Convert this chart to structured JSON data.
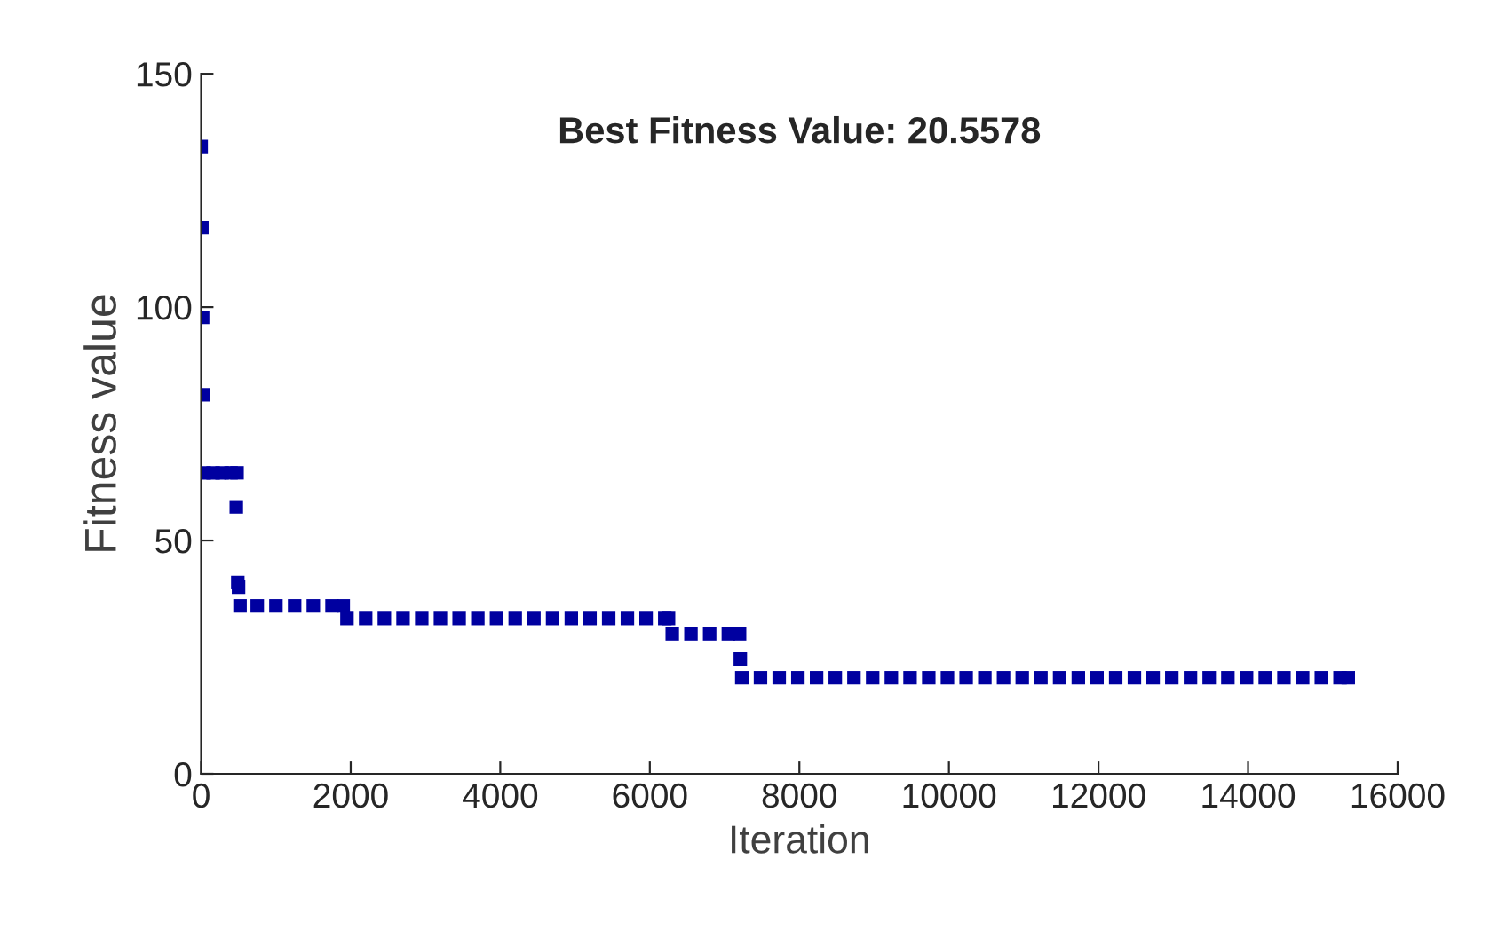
{
  "chart_data": {
    "type": "scatter",
    "title": "Best Fitness Value: 20.5578",
    "xlabel": "Iteration",
    "ylabel": "Fitness value",
    "xlim": [
      0,
      16000
    ],
    "xticks": [
      0,
      2000,
      4000,
      6000,
      8000,
      10000,
      12000,
      14000,
      16000
    ],
    "ylim": [
      0,
      150
    ],
    "yticks": [
      0,
      50,
      100,
      150
    ],
    "grid": false,
    "legend": false,
    "marker": "square",
    "series": [
      {
        "color": "#0000a0",
        "x": [
          0,
          10,
          20,
          30,
          40,
          160,
          280,
          400,
          480,
          470,
          490,
          500,
          520,
          750,
          1000,
          1250,
          1500,
          1750,
          1900,
          1950,
          2200,
          2450,
          2700,
          2950,
          3200,
          3450,
          3700,
          3950,
          4200,
          4450,
          4700,
          4950,
          5200,
          5450,
          5700,
          5950,
          6200,
          6250,
          6300,
          6550,
          6800,
          7050,
          7200,
          7210,
          7230,
          7480,
          7730,
          7980,
          8230,
          8480,
          8730,
          8980,
          9230,
          9480,
          9730,
          9980,
          10230,
          10480,
          10730,
          10980,
          11230,
          11480,
          11730,
          11980,
          12230,
          12480,
          12730,
          12980,
          13230,
          13480,
          13730,
          13980,
          14230,
          14480,
          14730,
          14980,
          15230,
          15340
        ],
        "values": [
          134.4,
          117,
          97.8,
          81.2,
          64.5,
          64.5,
          64.5,
          64.5,
          64.5,
          57.2,
          41,
          40,
          36,
          36,
          36,
          36,
          36,
          36,
          36,
          33.3,
          33.3,
          33.3,
          33.3,
          33.3,
          33.3,
          33.3,
          33.3,
          33.3,
          33.3,
          33.3,
          33.3,
          33.3,
          33.3,
          33.3,
          33.3,
          33.3,
          33.3,
          33.3,
          30,
          30,
          30,
          30,
          30,
          24.6,
          20.6,
          20.6,
          20.6,
          20.6,
          20.6,
          20.6,
          20.6,
          20.6,
          20.6,
          20.6,
          20.6,
          20.6,
          20.6,
          20.6,
          20.6,
          20.6,
          20.6,
          20.6,
          20.6,
          20.6,
          20.6,
          20.6,
          20.6,
          20.6,
          20.6,
          20.6,
          20.6,
          20.6,
          20.6,
          20.6,
          20.6,
          20.6,
          20.6,
          20.6
        ]
      }
    ]
  }
}
